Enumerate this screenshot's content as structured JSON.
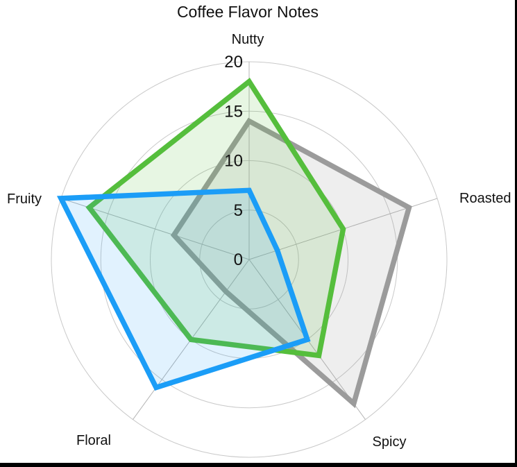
{
  "title": "Coffee Flavor Notes",
  "chart_data": {
    "type": "radar",
    "title": "Coffee Flavor Notes",
    "categories": [
      "Nutty",
      "Roasted",
      "Spicy",
      "Floral",
      "Fruity"
    ],
    "series": [
      {
        "name": "gray-series",
        "color": "#9B9B9B",
        "fill": "rgba(150,150,150,0.16)",
        "values": [
          14,
          17,
          18,
          4,
          8
        ]
      },
      {
        "name": "green-series",
        "color": "#55BE3C",
        "fill": "rgba(85,190,60,0.14)",
        "values": [
          18,
          10,
          12,
          10,
          17
        ]
      },
      {
        "name": "blue-series",
        "color": "#1B9DF7",
        "fill": "rgba(27,157,247,0.13)",
        "values": [
          7,
          3,
          10,
          16,
          20
        ]
      }
    ],
    "radial_ticks": [
      0,
      5,
      10,
      15,
      20
    ],
    "rlim": [
      0,
      20
    ],
    "grid": "circular rings with straight spokes",
    "grid_ring_color": "#C9C9C9",
    "grid_spoke_color": "#B5B5B5",
    "legend": "none"
  },
  "frame": {
    "right_border_color": "#000000",
    "bottom_border_color": "#000000"
  }
}
